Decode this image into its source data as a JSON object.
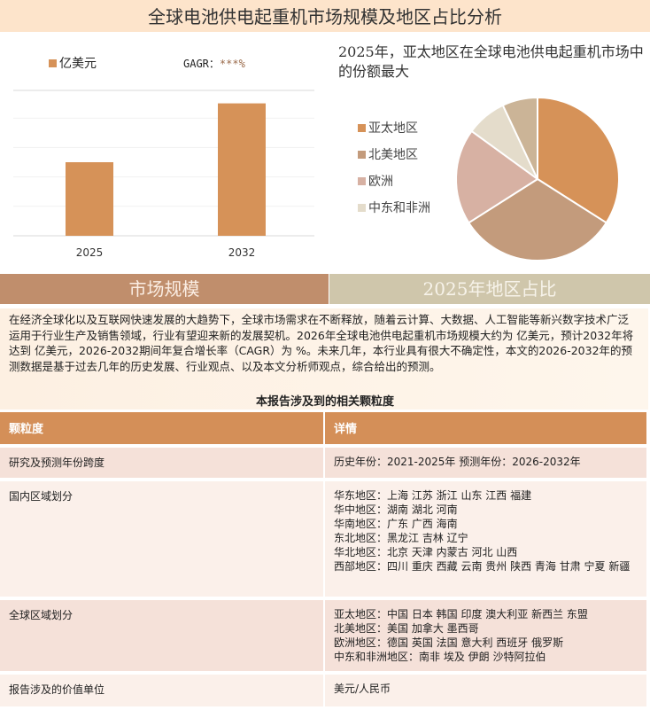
{
  "title": "全球电池供电起重机市场规模及地区占比分析",
  "bar_legend": {
    "unit": "亿美元",
    "gagr_label": "GAGR：",
    "gagr_value": "***%"
  },
  "pie_title": "2025年，亚太地区在全球电池供电起重机市场中的份额最大",
  "sections": {
    "left": "市场规模",
    "right": "2025年地区占比"
  },
  "intro": "在经济全球化以及互联网快速发展的大趋势下，全球市场需求在不断释放，随着云计算、大数据、人工智能等新兴数字技术广泛运用于行业生产及销售领域，行业有望迎来新的发展契机。2026年全球电池供电起重机市场规模大约为 亿美元，预计2032年将达到 亿美元，2026-2032期间年复合增长率（CAGR）为 %。未来几年，本行业具有很大不确定性，本文的2026-2032年的预测数据是基于过去几年的历史发展、行业观点、以及本文分析师观点，综合给出的预测。",
  "table_title": "本报告涉及到的相关颗粒度",
  "table": {
    "headers": [
      "颗粒度",
      "详情"
    ],
    "rows": [
      {
        "k": "研究及预测年份跨度",
        "v": "历史年份：2021-2025年 预测年份：2026-2032年"
      },
      {
        "k": "国内区域划分",
        "v": "华东地区：上海  江苏  浙江  山东  江西  福建\n华中地区：湖南  湖北  河南\n华南地区：广东  广西  海南\n东北地区：黑龙江  吉林  辽宁\n华北地区：北京  天津  内蒙古  河北  山西\n西部地区：四川  重庆  西藏  云南  贵州  陕西  青海  甘肃  宁夏  新疆"
      },
      {
        "k": "全球区域划分",
        "v": "亚太地区：中国  日本  韩国  印度  澳大利亚  新西兰  东盟\n北美地区：美国  加拿大  墨西哥\n欧洲地区：德国  英国  法国  意大利  西班牙  俄罗斯\n中东和非洲地区：南非  埃及  伊朗  沙特阿拉伯"
      },
      {
        "k": "报告涉及的价值单位",
        "v": "美元/人民币"
      }
    ]
  },
  "chart_data": [
    {
      "type": "bar",
      "categories": [
        "2025",
        "2032"
      ],
      "values": [
        2.5,
        4.5
      ],
      "ylim": [
        0,
        5
      ],
      "series_name": "亿美元",
      "color": "#d69258",
      "grid": true
    },
    {
      "type": "pie",
      "labels": [
        "亚太地区",
        "北美地区",
        "欧洲",
        "中东和非洲",
        ""
      ],
      "values": [
        34,
        32,
        19,
        8,
        7
      ],
      "colors": [
        "#d69258",
        "#c39b7c",
        "#d7b1a3",
        "#e4dccb",
        "#cbb497"
      ]
    }
  ]
}
